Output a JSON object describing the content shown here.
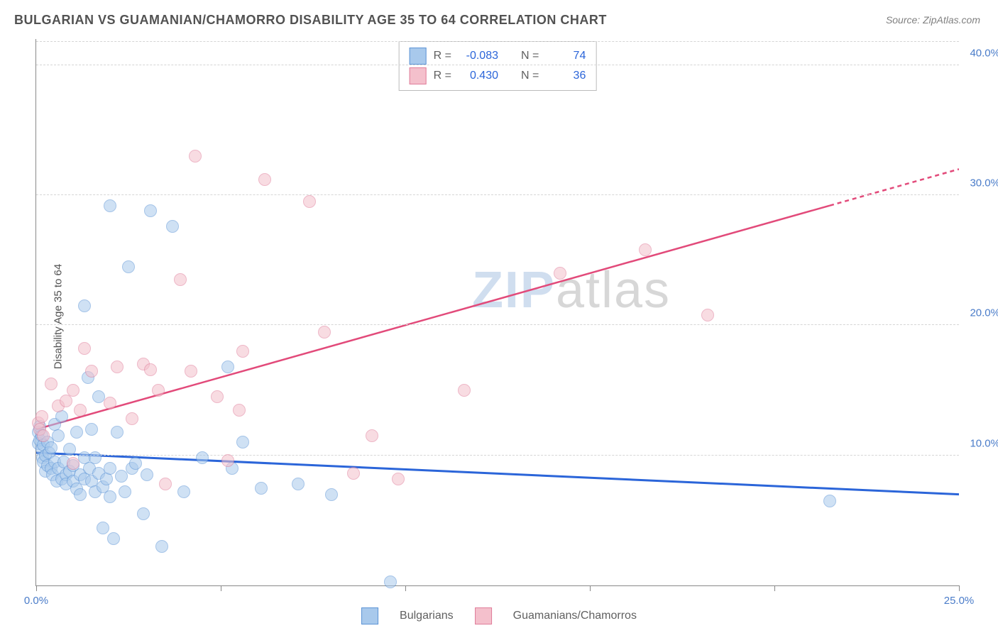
{
  "chart": {
    "type": "scatter",
    "title": "BULGARIAN VS GUAMANIAN/CHAMORRO DISABILITY AGE 35 TO 64 CORRELATION CHART",
    "source": "Source: ZipAtlas.com",
    "ylabel": "Disability Age 35 to 64",
    "watermark_zip": "ZIP",
    "watermark_atlas": "atlas",
    "background_color": "#ffffff",
    "grid_color": "#d5d5d5",
    "axis_color": "#888888",
    "tick_label_color": "#4a7cc9",
    "xlim": [
      0,
      25
    ],
    "ylim": [
      0,
      42
    ],
    "xtick_positions": [
      0,
      5,
      10,
      15,
      20,
      25
    ],
    "xtick_labels": [
      "0.0%",
      "",
      "",
      "",
      "",
      "25.0%"
    ],
    "ygrid_positions": [
      10,
      20,
      30,
      40
    ],
    "ytick_labels": [
      "10.0%",
      "20.0%",
      "30.0%",
      "40.0%"
    ],
    "marker_radius": 9,
    "marker_opacity": 0.55,
    "series": [
      {
        "name": "Bulgarians",
        "marker_fill": "#a8c9ec",
        "marker_stroke": "#5c94d6",
        "trend_color": "#2b65d9",
        "trend_width": 3,
        "R_label": "R =",
        "R_value": "-0.083",
        "N_label": "N =",
        "N_value": "74",
        "trend": {
          "x1": 0,
          "y1": 10.2,
          "x2": 25,
          "y2": 7.0
        },
        "points": [
          [
            0.05,
            11.8
          ],
          [
            0.05,
            10.9
          ],
          [
            0.1,
            12.2
          ],
          [
            0.1,
            11.2
          ],
          [
            0.15,
            11.5
          ],
          [
            0.15,
            10.5
          ],
          [
            0.18,
            9.8
          ],
          [
            0.2,
            10.8
          ],
          [
            0.2,
            9.5
          ],
          [
            0.25,
            10.0
          ],
          [
            0.25,
            8.8
          ],
          [
            0.3,
            11.0
          ],
          [
            0.3,
            9.2
          ],
          [
            0.35,
            10.2
          ],
          [
            0.4,
            9.0
          ],
          [
            0.4,
            10.6
          ],
          [
            0.45,
            8.5
          ],
          [
            0.5,
            9.5
          ],
          [
            0.5,
            12.4
          ],
          [
            0.55,
            8.0
          ],
          [
            0.6,
            9.0
          ],
          [
            0.6,
            11.5
          ],
          [
            0.7,
            8.2
          ],
          [
            0.7,
            13.0
          ],
          [
            0.75,
            9.5
          ],
          [
            0.8,
            8.5
          ],
          [
            0.8,
            7.8
          ],
          [
            0.9,
            8.8
          ],
          [
            0.9,
            10.5
          ],
          [
            1.0,
            8.0
          ],
          [
            1.0,
            9.2
          ],
          [
            1.1,
            7.4
          ],
          [
            1.1,
            11.8
          ],
          [
            1.2,
            8.5
          ],
          [
            1.2,
            7.0
          ],
          [
            1.3,
            9.8
          ],
          [
            1.3,
            8.2
          ],
          [
            1.4,
            16.0
          ],
          [
            1.45,
            9.0
          ],
          [
            1.5,
            8.0
          ],
          [
            1.5,
            12.0
          ],
          [
            1.6,
            7.2
          ],
          [
            1.6,
            9.8
          ],
          [
            1.7,
            8.6
          ],
          [
            1.7,
            14.5
          ],
          [
            1.8,
            7.6
          ],
          [
            1.8,
            4.4
          ],
          [
            1.9,
            8.2
          ],
          [
            2.0,
            6.8
          ],
          [
            2.0,
            9.0
          ],
          [
            2.1,
            3.6
          ],
          [
            2.2,
            11.8
          ],
          [
            2.3,
            8.4
          ],
          [
            2.4,
            7.2
          ],
          [
            2.5,
            24.5
          ],
          [
            2.6,
            9.0
          ],
          [
            2.7,
            9.4
          ],
          [
            2.9,
            5.5
          ],
          [
            3.0,
            8.5
          ],
          [
            3.1,
            28.8
          ],
          [
            3.4,
            3.0
          ],
          [
            3.7,
            27.6
          ],
          [
            4.0,
            7.2
          ],
          [
            4.5,
            9.8
          ],
          [
            5.2,
            16.8
          ],
          [
            5.3,
            9.0
          ],
          [
            5.6,
            11.0
          ],
          [
            6.1,
            7.5
          ],
          [
            7.1,
            7.8
          ],
          [
            8.0,
            7.0
          ],
          [
            9.6,
            0.3
          ],
          [
            2.0,
            29.2
          ],
          [
            1.3,
            21.5
          ],
          [
            21.5,
            6.5
          ]
        ]
      },
      {
        "name": "Guamanians/Chamorros",
        "marker_fill": "#f4c0cc",
        "marker_stroke": "#e07d9a",
        "trend_color": "#e24a7a",
        "trend_width": 2.5,
        "R_label": "R =",
        "R_value": "0.430",
        "N_label": "N =",
        "N_value": "36",
        "trend": {
          "x1": 0,
          "y1": 12.0,
          "x2": 25,
          "y2": 32.0
        },
        "trend_dash_after_x": 21.5,
        "points": [
          [
            0.05,
            12.5
          ],
          [
            0.1,
            12.0
          ],
          [
            0.15,
            13.0
          ],
          [
            0.2,
            11.5
          ],
          [
            0.4,
            15.5
          ],
          [
            0.6,
            13.8
          ],
          [
            0.8,
            14.2
          ],
          [
            1.0,
            9.4
          ],
          [
            1.0,
            15.0
          ],
          [
            1.2,
            13.5
          ],
          [
            1.3,
            18.2
          ],
          [
            1.5,
            16.5
          ],
          [
            2.0,
            14.0
          ],
          [
            2.2,
            16.8
          ],
          [
            2.6,
            12.8
          ],
          [
            2.9,
            17.0
          ],
          [
            3.1,
            16.6
          ],
          [
            3.3,
            15.0
          ],
          [
            3.5,
            7.8
          ],
          [
            3.9,
            23.5
          ],
          [
            4.2,
            16.5
          ],
          [
            4.3,
            33.0
          ],
          [
            4.9,
            14.5
          ],
          [
            5.2,
            9.6
          ],
          [
            5.5,
            13.5
          ],
          [
            5.6,
            18.0
          ],
          [
            6.2,
            31.2
          ],
          [
            7.4,
            29.5
          ],
          [
            7.8,
            19.5
          ],
          [
            8.6,
            8.6
          ],
          [
            9.1,
            11.5
          ],
          [
            9.8,
            8.2
          ],
          [
            11.6,
            15.0
          ],
          [
            14.2,
            24.0
          ],
          [
            16.5,
            25.8
          ],
          [
            18.2,
            20.8
          ]
        ]
      }
    ],
    "legend": {
      "series1_label": "Bulgarians",
      "series2_label": "Guamanians/Chamorros"
    }
  }
}
